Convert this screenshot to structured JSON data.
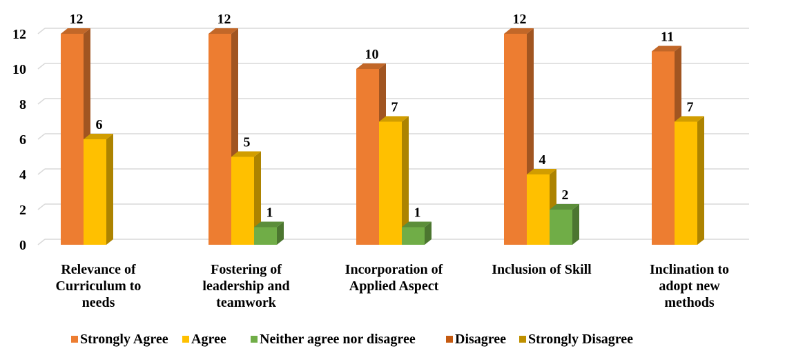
{
  "chart_data": {
    "type": "bar",
    "style": "3d-clustered-column",
    "categories": [
      [
        "Relevance of",
        "Curriculum to",
        "needs"
      ],
      [
        "Fostering of",
        "leadership and",
        "teamwork"
      ],
      [
        "Incorporation of",
        "Applied Aspect"
      ],
      [
        "Inclusion of Skill"
      ],
      [
        "Inclination to",
        "adopt new",
        "methods"
      ]
    ],
    "series": [
      {
        "name": "Strongly Agree",
        "color": "#ED7D31",
        "values": [
          12,
          12,
          10,
          12,
          11
        ]
      },
      {
        "name": "Agree",
        "color": "#FFC000",
        "values": [
          6,
          5,
          7,
          4,
          7
        ]
      },
      {
        "name": "Neither agree nor disagree",
        "color": "#70AD47",
        "values": [
          0,
          1,
          1,
          2,
          0
        ]
      },
      {
        "name": "Disagree",
        "color": "#C55A11",
        "values": [
          0,
          0,
          0,
          0,
          0
        ]
      },
      {
        "name": "Strongly Disagree",
        "color": "#BF9000",
        "values": [
          0,
          0,
          0,
          0,
          0
        ]
      }
    ],
    "title": "",
    "xlabel": "",
    "ylabel": "",
    "ylim": [
      0,
      12
    ],
    "yticks": [
      0,
      2,
      4,
      6,
      8,
      10,
      12
    ],
    "grid": true,
    "legend_position": "bottom"
  }
}
